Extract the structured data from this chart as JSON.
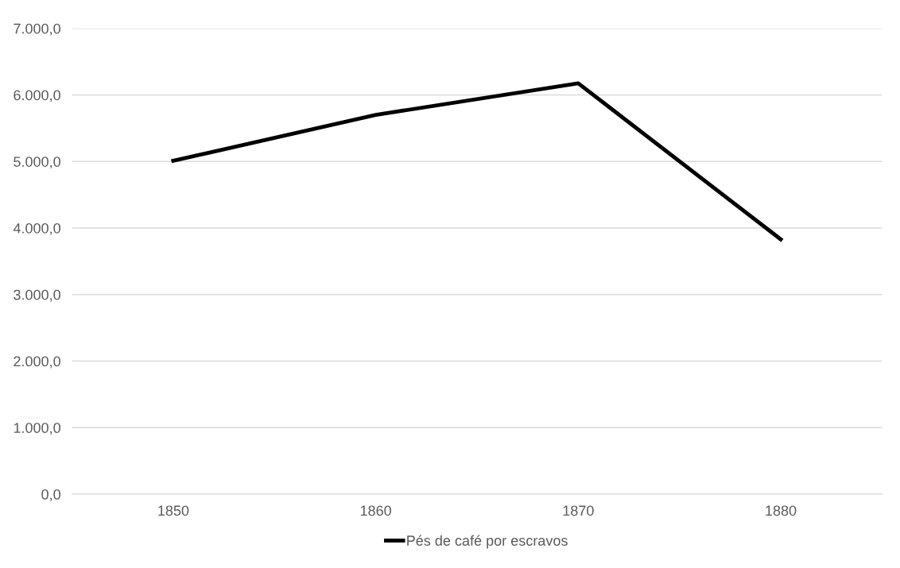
{
  "chart_data": {
    "type": "line",
    "categories": [
      "1850",
      "1860",
      "1870",
      "1880"
    ],
    "series": [
      {
        "name": "Pés de café por escravos",
        "color": "#000000",
        "values": [
          5010,
          5700,
          6175,
          3830
        ]
      }
    ],
    "ylim": [
      0,
      7000
    ],
    "yticks": [
      {
        "value": 0,
        "label": "0,0"
      },
      {
        "value": 1000,
        "label": "1.000,0"
      },
      {
        "value": 2000,
        "label": "2.000,0"
      },
      {
        "value": 3000,
        "label": "3.000,0"
      },
      {
        "value": 4000,
        "label": "4.000,0"
      },
      {
        "value": 5000,
        "label": "5.000,0"
      },
      {
        "value": 6000,
        "label": "6.000,0"
      },
      {
        "value": 7000,
        "label": "7.000,0"
      }
    ],
    "grid": "y",
    "legend": "bottom",
    "marker": "none",
    "line_style": "solid"
  }
}
